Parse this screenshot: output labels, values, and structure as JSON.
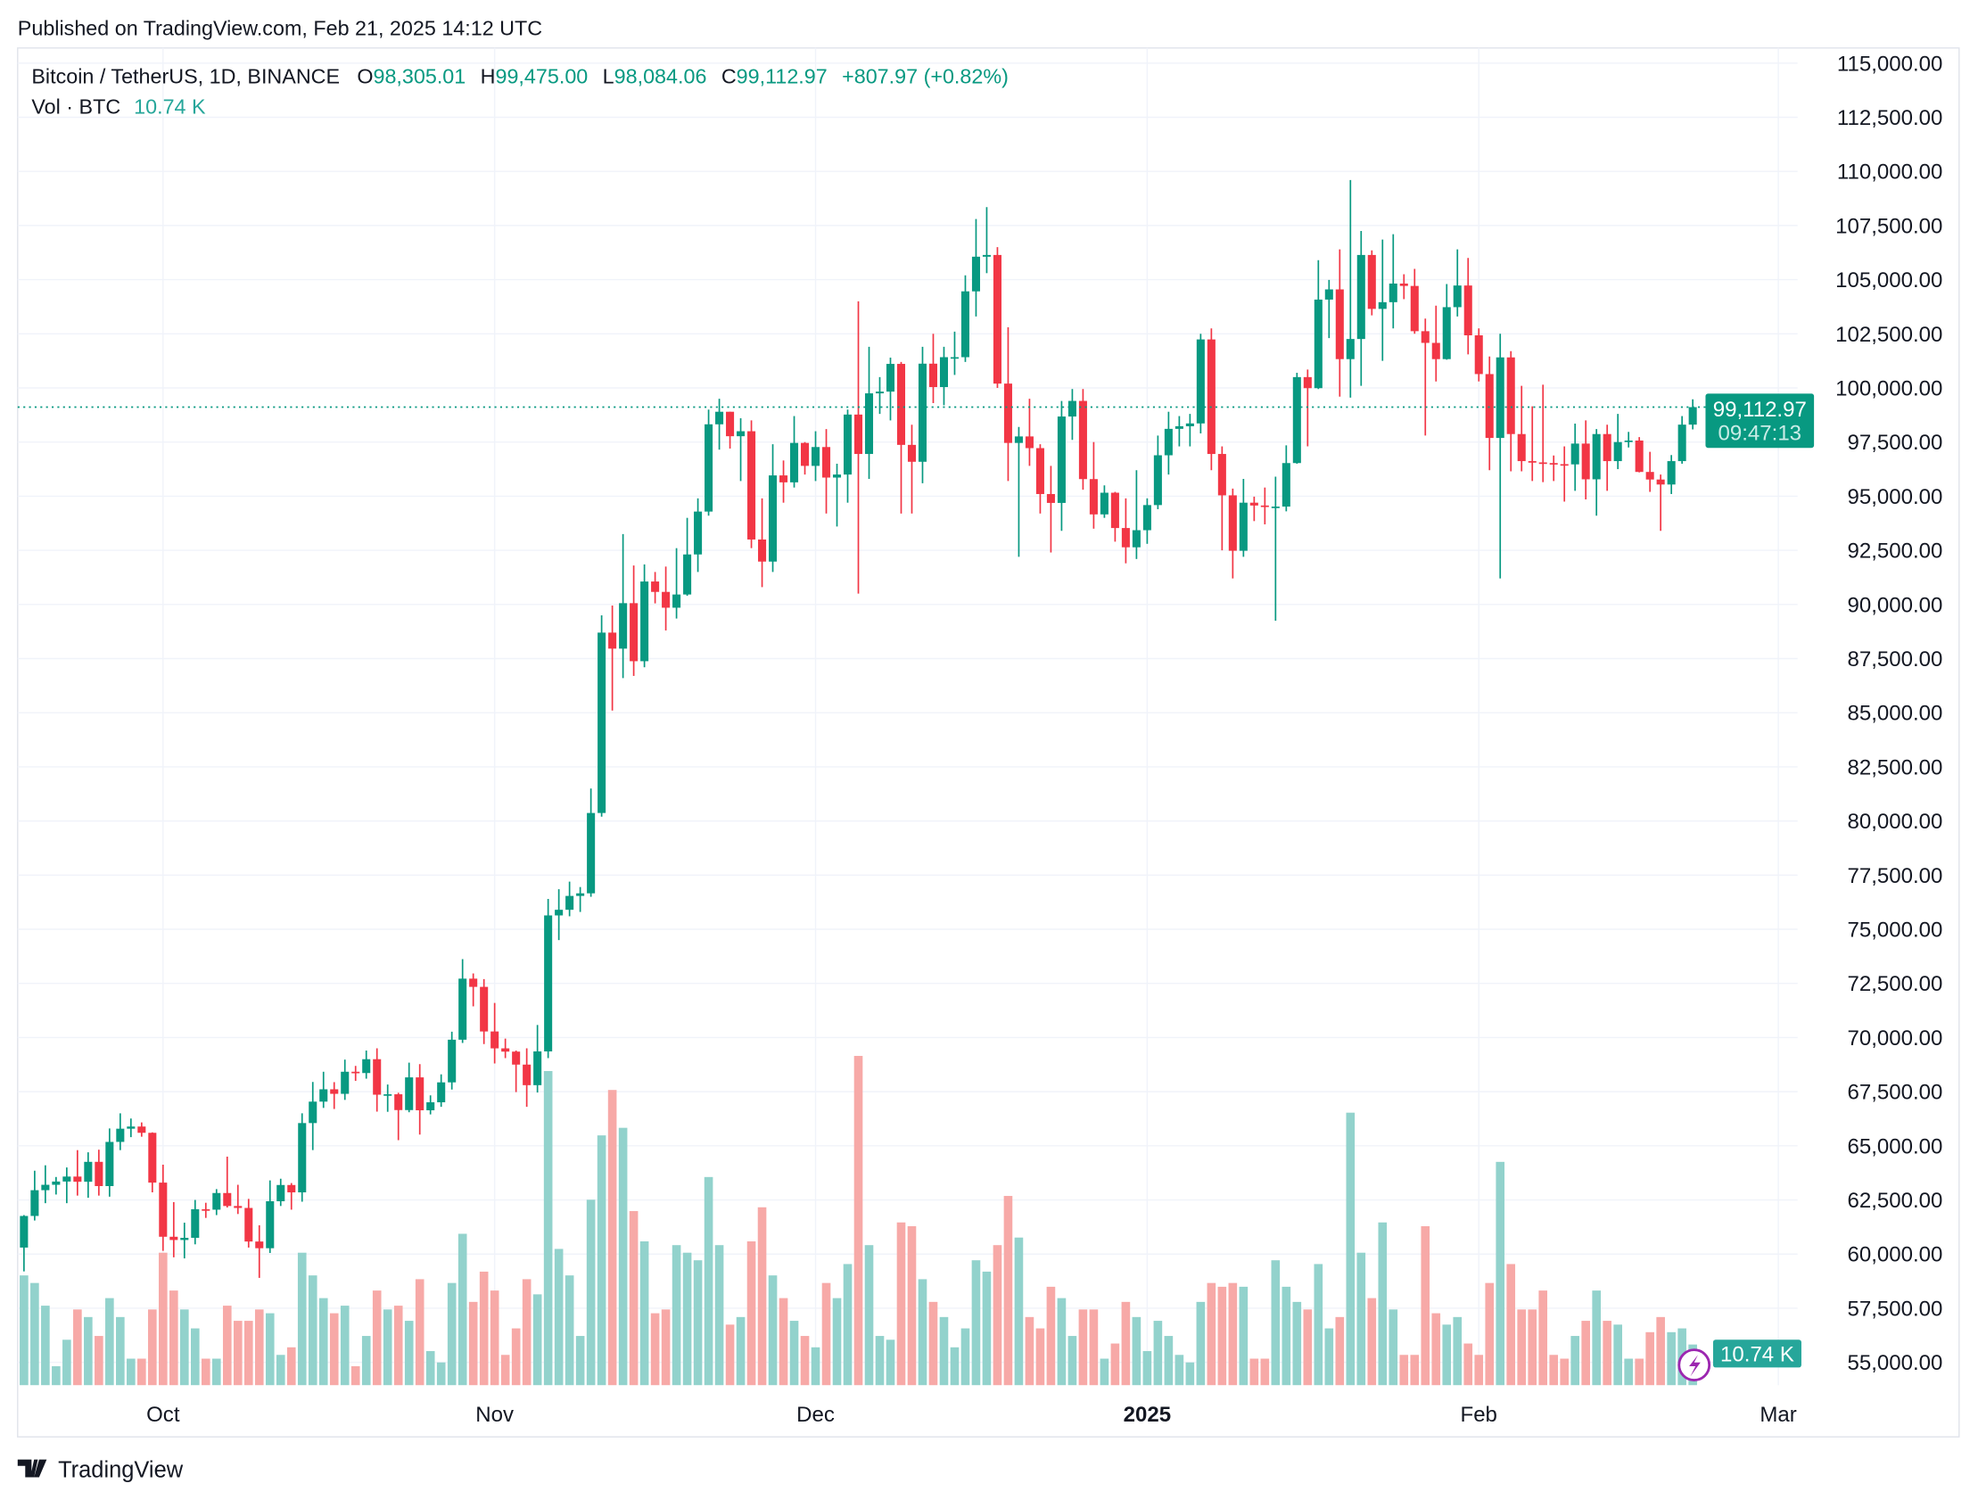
{
  "published": "Published on TradingView.com, Feb 21, 2025 14:12 UTC",
  "legend": {
    "symbol": "Bitcoin / TetherUS, 1D, BINANCE",
    "o_label": "O",
    "o": "98,305.01",
    "h_label": "H",
    "h": "99,475.00",
    "l_label": "L",
    "l": "98,084.06",
    "c_label": "C",
    "c": "99,112.97",
    "change": "+807.97 (+0.82%)",
    "vol_label": "Vol · BTC",
    "vol": "10.74 K"
  },
  "last_price": {
    "value": 99112.97,
    "label": "99,112.97",
    "countdown": "09:47:13"
  },
  "vol_badge": "10.74 K",
  "footer_logo": "TradingView",
  "colors": {
    "up": "#089981",
    "down": "#f23645",
    "vol_up": "#92d2cc",
    "vol_down": "#f7a9a7",
    "grid": "#f0f3fa",
    "badge": "#089981",
    "vol_badge": "#26a69a",
    "icon": "#9c27b0"
  },
  "chart_data": {
    "type": "candlestick",
    "title": "Bitcoin / TetherUS, 1D, BINANCE",
    "interval": "1D",
    "price_ticks": [
      "115,000.00",
      "112,500.00",
      "110,000.00",
      "107,500.00",
      "105,000.00",
      "102,500.00",
      "100,000.00",
      "97,500.00",
      "95,000.00",
      "92,500.00",
      "90,000.00",
      "87,500.00",
      "85,000.00",
      "82,500.00",
      "80,000.00",
      "77,500.00",
      "75,000.00",
      "72,500.00",
      "70,000.00",
      "67,500.00",
      "65,000.00",
      "62,500.00",
      "60,000.00",
      "57,500.00",
      "55,000.00"
    ],
    "time_ticks": [
      "Oct",
      "Nov",
      "Dec",
      "2025",
      "Feb",
      "Mar"
    ],
    "ylim": [
      55000,
      115000
    ],
    "grid": true,
    "ohlc": [
      [
        60300,
        61800,
        59200,
        61760
      ],
      [
        61760,
        63850,
        61550,
        62950
      ],
      [
        62950,
        64100,
        62350,
        63200
      ],
      [
        63200,
        63560,
        62750,
        63350
      ],
      [
        63350,
        64000,
        62350,
        63580
      ],
      [
        63580,
        64800,
        62700,
        63340
      ],
      [
        63340,
        64700,
        62600,
        64260
      ],
      [
        64260,
        64820,
        62700,
        63140
      ],
      [
        63140,
        65800,
        62650,
        65180
      ],
      [
        65180,
        66500,
        64800,
        65790
      ],
      [
        65790,
        66260,
        65400,
        65890
      ],
      [
        65890,
        66080,
        65420,
        65600
      ],
      [
        65600,
        65620,
        62850,
        63300
      ],
      [
        63300,
        64130,
        60150,
        60800
      ],
      [
        60800,
        62400,
        59850,
        60650
      ],
      [
        60650,
        61450,
        59800,
        60750
      ],
      [
        60750,
        62500,
        60450,
        62070
      ],
      [
        62070,
        62370,
        61670,
        62050
      ],
      [
        62050,
        63000,
        61800,
        62820
      ],
      [
        62820,
        64500,
        62150,
        62220
      ],
      [
        62220,
        63200,
        61850,
        62130
      ],
      [
        62130,
        62550,
        60300,
        60580
      ],
      [
        60580,
        61330,
        58900,
        60270
      ],
      [
        60270,
        63400,
        60050,
        62440
      ],
      [
        62440,
        63480,
        62220,
        63190
      ],
      [
        63190,
        63280,
        62050,
        62850
      ],
      [
        62850,
        66500,
        62420,
        66050
      ],
      [
        66050,
        67950,
        64800,
        67040
      ],
      [
        67040,
        68420,
        66750,
        67610
      ],
      [
        67610,
        67940,
        66700,
        67400
      ],
      [
        67400,
        68980,
        67120,
        68420
      ],
      [
        68420,
        68690,
        68000,
        68360
      ],
      [
        68360,
        69400,
        68100,
        69000
      ],
      [
        69000,
        69500,
        66580,
        67360
      ],
      [
        67360,
        67830,
        66570,
        67380
      ],
      [
        67380,
        67450,
        65260,
        66650
      ],
      [
        66650,
        68840,
        66550,
        68160
      ],
      [
        68160,
        68770,
        65520,
        66640
      ],
      [
        66640,
        67330,
        66450,
        67010
      ],
      [
        67010,
        68300,
        66800,
        67930
      ],
      [
        67930,
        70270,
        67600,
        69900
      ],
      [
        69900,
        73620,
        69750,
        72720
      ],
      [
        72720,
        72960,
        71440,
        72340
      ],
      [
        72340,
        72700,
        69700,
        70280
      ],
      [
        70280,
        71600,
        68800,
        69500
      ],
      [
        69500,
        69950,
        69050,
        69350
      ],
      [
        69350,
        69400,
        67480,
        68750
      ],
      [
        68750,
        69500,
        66800,
        67800
      ],
      [
        67800,
        70580,
        67460,
        69360
      ],
      [
        69360,
        76400,
        69050,
        75640
      ],
      [
        75640,
        76850,
        74500,
        75900
      ],
      [
        75900,
        77200,
        75600,
        76540
      ],
      [
        76540,
        76950,
        75800,
        76660
      ],
      [
        76660,
        81500,
        76500,
        80370
      ],
      [
        80370,
        89500,
        80200,
        88700
      ],
      [
        88700,
        89950,
        85100,
        87960
      ],
      [
        87960,
        93250,
        86600,
        90060
      ],
      [
        90060,
        91800,
        86700,
        87380
      ],
      [
        87380,
        91850,
        87100,
        91060
      ],
      [
        91060,
        91500,
        90050,
        90580
      ],
      [
        90580,
        91750,
        88800,
        89850
      ],
      [
        89850,
        92600,
        89350,
        90460
      ],
      [
        90460,
        94000,
        90400,
        92310
      ],
      [
        92310,
        94900,
        91500,
        94290
      ],
      [
        94290,
        99000,
        94100,
        98320
      ],
      [
        98320,
        99500,
        97150,
        98900
      ],
      [
        98900,
        98900,
        97200,
        97770
      ],
      [
        97770,
        98600,
        95700,
        98000
      ],
      [
        98000,
        98500,
        92600,
        93000
      ],
      [
        93000,
        94900,
        90800,
        91980
      ],
      [
        91980,
        97400,
        91500,
        95960
      ],
      [
        95960,
        96650,
        94700,
        95640
      ],
      [
        95640,
        98700,
        95400,
        97460
      ],
      [
        97460,
        97500,
        96000,
        96400
      ],
      [
        96400,
        98000,
        95700,
        97270
      ],
      [
        97270,
        98100,
        94200,
        95860
      ],
      [
        95860,
        96500,
        93600,
        96000
      ],
      [
        96000,
        99000,
        94700,
        98770
      ],
      [
        98770,
        104000,
        90500,
        96950
      ],
      [
        96950,
        101900,
        95800,
        99750
      ],
      [
        99750,
        100500,
        98800,
        99830
      ],
      [
        99830,
        101400,
        98500,
        101110
      ],
      [
        101110,
        101200,
        94200,
        97370
      ],
      [
        97370,
        98300,
        94200,
        96590
      ],
      [
        96590,
        101900,
        95600,
        101120
      ],
      [
        101120,
        102500,
        99300,
        100040
      ],
      [
        100040,
        101900,
        99200,
        101420
      ],
      [
        101420,
        102600,
        100600,
        101420
      ],
      [
        101420,
        105200,
        101200,
        104460
      ],
      [
        104460,
        107800,
        103300,
        106060
      ],
      [
        106060,
        108350,
        105300,
        106140
      ],
      [
        106140,
        106500,
        100000,
        100200
      ],
      [
        100200,
        102800,
        95700,
        97460
      ],
      [
        97460,
        98200,
        92200,
        97760
      ],
      [
        97760,
        99500,
        96400,
        97220
      ],
      [
        97220,
        97400,
        94200,
        95100
      ],
      [
        95100,
        96400,
        92400,
        94690
      ],
      [
        94690,
        99400,
        93400,
        98680
      ],
      [
        98680,
        99950,
        97600,
        99400
      ],
      [
        99400,
        99950,
        95300,
        95790
      ],
      [
        95790,
        97500,
        93500,
        94160
      ],
      [
        94160,
        95500,
        94000,
        95160
      ],
      [
        95160,
        95200,
        92900,
        93530
      ],
      [
        93530,
        94900,
        91900,
        92640
      ],
      [
        92640,
        96200,
        92100,
        93430
      ],
      [
        93430,
        94900,
        92800,
        94590
      ],
      [
        94590,
        97800,
        94400,
        96890
      ],
      [
        96890,
        98900,
        96000,
        98110
      ],
      [
        98110,
        98700,
        97300,
        98230
      ],
      [
        98230,
        98800,
        97300,
        98360
      ],
      [
        98360,
        102500,
        97900,
        102240
      ],
      [
        102240,
        102750,
        96200,
        96950
      ],
      [
        96950,
        97300,
        92500,
        95040
      ],
      [
        95040,
        95350,
        91200,
        92480
      ],
      [
        92480,
        95800,
        92200,
        94700
      ],
      [
        94700,
        94980,
        93850,
        94570
      ],
      [
        94570,
        95400,
        93700,
        94500
      ],
      [
        94500,
        95900,
        89250,
        94520
      ],
      [
        94520,
        97350,
        94300,
        96530
      ],
      [
        96530,
        100700,
        96500,
        100500
      ],
      [
        100500,
        100850,
        97300,
        99990
      ],
      [
        99990,
        105900,
        99950,
        104080
      ],
      [
        104080,
        104990,
        102300,
        104550
      ],
      [
        104550,
        106400,
        99600,
        101330
      ],
      [
        101330,
        109600,
        99550,
        102260
      ],
      [
        102260,
        107250,
        100100,
        106140
      ],
      [
        106140,
        106350,
        103350,
        103650
      ],
      [
        103650,
        106850,
        101250,
        103960
      ],
      [
        103960,
        107100,
        102750,
        104820
      ],
      [
        104820,
        105250,
        104100,
        104710
      ],
      [
        104710,
        105500,
        102500,
        102620
      ],
      [
        102620,
        103200,
        97800,
        102080
      ],
      [
        102080,
        103800,
        100300,
        101330
      ],
      [
        101330,
        104800,
        101300,
        103730
      ],
      [
        103730,
        106400,
        103300,
        104730
      ],
      [
        104730,
        106000,
        101550,
        102430
      ],
      [
        102430,
        102750,
        100300,
        100640
      ],
      [
        100640,
        101450,
        96200,
        97690
      ],
      [
        97690,
        102500,
        91200,
        101410
      ],
      [
        101410,
        101700,
        96150,
        97870
      ],
      [
        97870,
        100100,
        96150,
        96620
      ],
      [
        96620,
        99150,
        95700,
        96560
      ],
      [
        96560,
        100150,
        95650,
        96530
      ],
      [
        96530,
        96880,
        95700,
        96480
      ],
      [
        96480,
        97300,
        94750,
        96470
      ],
      [
        96470,
        98350,
        95250,
        97430
      ],
      [
        97430,
        98500,
        94850,
        95780
      ],
      [
        95780,
        98100,
        94100,
        97870
      ],
      [
        97870,
        98300,
        95250,
        96620
      ],
      [
        96620,
        98800,
        96250,
        97500
      ],
      [
        97500,
        97970,
        97250,
        97570
      ],
      [
        97570,
        97730,
        96100,
        96120
      ],
      [
        96120,
        97050,
        95200,
        95770
      ],
      [
        95770,
        96000,
        93400,
        95540
      ],
      [
        95540,
        96900,
        95100,
        96620
      ],
      [
        96620,
        98700,
        96500,
        98305.01
      ],
      [
        98305.01,
        99475,
        98084.06,
        99112.97
      ]
    ],
    "volume_k": [
      29,
      27,
      21,
      5,
      12,
      20,
      18,
      13,
      23,
      18,
      7,
      7,
      20,
      35,
      25,
      20,
      15,
      7,
      7,
      21,
      17,
      17,
      20,
      19,
      8,
      10,
      35,
      29,
      23,
      19,
      21,
      5,
      13,
      25,
      20,
      21,
      17,
      28,
      9,
      6,
      27,
      40,
      22,
      30,
      25,
      8,
      15,
      28,
      24,
      83,
      36,
      29,
      13,
      49,
      66,
      78,
      68,
      46,
      38,
      19,
      20,
      37,
      35,
      33,
      55,
      37,
      16,
      18,
      38,
      47,
      29,
      23,
      17,
      13,
      10,
      27,
      23,
      32,
      87,
      37,
      13,
      12,
      43,
      42,
      28,
      22,
      18,
      10,
      15,
      33,
      30,
      37,
      50,
      39,
      18,
      15,
      26,
      23,
      13,
      20,
      20,
      7,
      11,
      22,
      18,
      9,
      17,
      13,
      8,
      6,
      22,
      27,
      26,
      27,
      26,
      7,
      7,
      33,
      26,
      22,
      20,
      32,
      15,
      18,
      72,
      35,
      23,
      43,
      20,
      8,
      8,
      42,
      19,
      16,
      18,
      11,
      8,
      27,
      59,
      32,
      20,
      20,
      25,
      8,
      7,
      13,
      17,
      25,
      17,
      16,
      7,
      7,
      14,
      18,
      14,
      15,
      10.74
    ]
  }
}
